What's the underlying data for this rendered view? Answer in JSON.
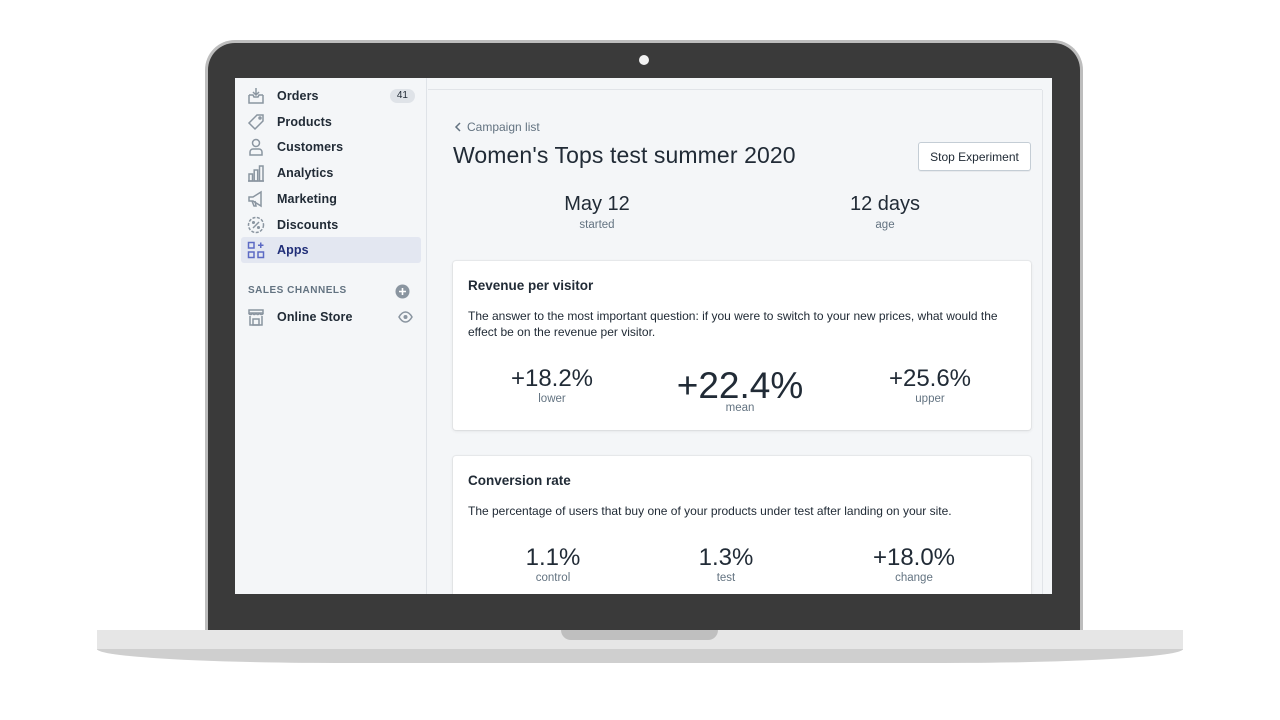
{
  "sidebar": {
    "items": [
      {
        "label": "Orders",
        "icon": "orders-icon",
        "badge": "41"
      },
      {
        "label": "Products",
        "icon": "tag-icon"
      },
      {
        "label": "Customers",
        "icon": "person-icon"
      },
      {
        "label": "Analytics",
        "icon": "bar-chart-icon"
      },
      {
        "label": "Marketing",
        "icon": "megaphone-icon"
      },
      {
        "label": "Discounts",
        "icon": "discount-icon"
      },
      {
        "label": "Apps",
        "icon": "apps-icon",
        "active": true
      }
    ],
    "sales_channels_heading": "SALES CHANNELS",
    "channels": [
      {
        "label": "Online Store",
        "icon": "store-icon"
      }
    ]
  },
  "main": {
    "back_link": "Campaign list",
    "title": "Women's Tops test summer 2020",
    "stop_button": "Stop Experiment",
    "stats": [
      {
        "value": "May 12",
        "caption": "started"
      },
      {
        "value": "12 days",
        "caption": "age"
      }
    ],
    "revenue_card": {
      "title": "Revenue per visitor",
      "description": "The answer to the most important question: if you were to switch to your new prices, what would the effect be on the revenue per visitor.",
      "metrics": [
        {
          "value": "+18.2%",
          "label": "lower"
        },
        {
          "value": "+22.4%",
          "label": "mean"
        },
        {
          "value": "+25.6%",
          "label": "upper"
        }
      ]
    },
    "conversion_card": {
      "title": "Conversion rate",
      "description": "The percentage of users that buy one of your products under test after landing on your site.",
      "metrics": [
        {
          "value": "1.1%",
          "label": "control"
        },
        {
          "value": "1.3%",
          "label": "test"
        },
        {
          "value": "+18.0%",
          "label": "change"
        }
      ]
    }
  },
  "colors": {
    "sidebar_bg": "#f4f6f8",
    "active_bg": "#e3e7f1",
    "active_text": "#202e78",
    "text": "#212b36",
    "muted": "#637381"
  }
}
